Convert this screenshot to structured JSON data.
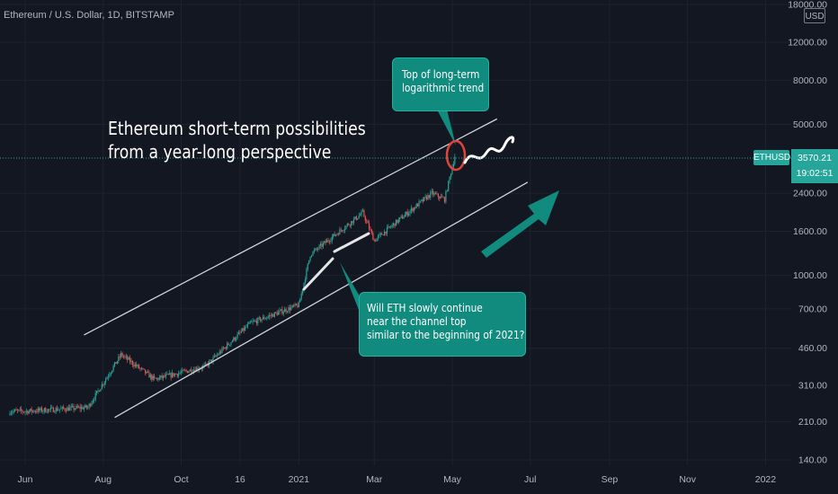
{
  "header": {
    "symbol_title": "Ethereum / U.S. Dollar, 1D, BITSTAMP",
    "currency": "USD"
  },
  "annotations": {
    "headline_line1": "Ethereum short-term possibilities",
    "headline_line2": "from a year-long perspective",
    "callout_top_line1": "Top of long-term",
    "callout_top_line2": "logarithmic trend",
    "callout_mid_line1": "Will ETH slowly continue",
    "callout_mid_line2": "near the channel top",
    "callout_mid_line3": "similar to the beginning of 2021?"
  },
  "price_tag": {
    "symbol": "ETHUSD",
    "price": "3570.21",
    "countdown": "19:02:51"
  },
  "colors": {
    "background": "#131722",
    "up": "#26a69a",
    "down": "#ef5350",
    "callout": "#128b7f",
    "circle": "#e0453a"
  },
  "chart_data": {
    "type": "candlestick",
    "scale": "log",
    "x_ticks": [
      "Jun",
      "Aug",
      "Oct",
      "16",
      "2021",
      "Mar",
      "May",
      "Jul",
      "Sep",
      "Nov",
      "2022"
    ],
    "y_ticks": [
      "18000.00",
      "12000.00",
      "8000.00",
      "5000.00",
      "3570.21",
      "2400.00",
      "1600.00",
      "1000.00",
      "700.00",
      "460.00",
      "310.00",
      "210.00",
      "140.00"
    ],
    "ylim": [
      140,
      18000
    ],
    "last_price": 3570.21,
    "key_points": [
      {
        "date": "2020-06-01",
        "price": 235
      },
      {
        "date": "2020-07-20",
        "price": 245
      },
      {
        "date": "2020-08-15",
        "price": 430
      },
      {
        "date": "2020-09-10",
        "price": 330
      },
      {
        "date": "2020-10-20",
        "price": 380
      },
      {
        "date": "2020-11-24",
        "price": 600
      },
      {
        "date": "2021-01-01",
        "price": 730
      },
      {
        "date": "2021-01-10",
        "price": 1250
      },
      {
        "date": "2021-02-20",
        "price": 1950
      },
      {
        "date": "2021-03-01",
        "price": 1450
      },
      {
        "date": "2021-03-20",
        "price": 1800
      },
      {
        "date": "2021-04-15",
        "price": 2400
      },
      {
        "date": "2021-04-25",
        "price": 2250
      },
      {
        "date": "2021-05-03",
        "price": 3570
      }
    ],
    "channel": {
      "upper": [
        {
          "date": "2020-07-17",
          "price": 530
        },
        {
          "date": "2021-06-05",
          "price": 5300
        }
      ],
      "lower": [
        {
          "date": "2020-08-10",
          "price": 220
        },
        {
          "date": "2021-06-29",
          "price": 2700
        }
      ]
    }
  }
}
